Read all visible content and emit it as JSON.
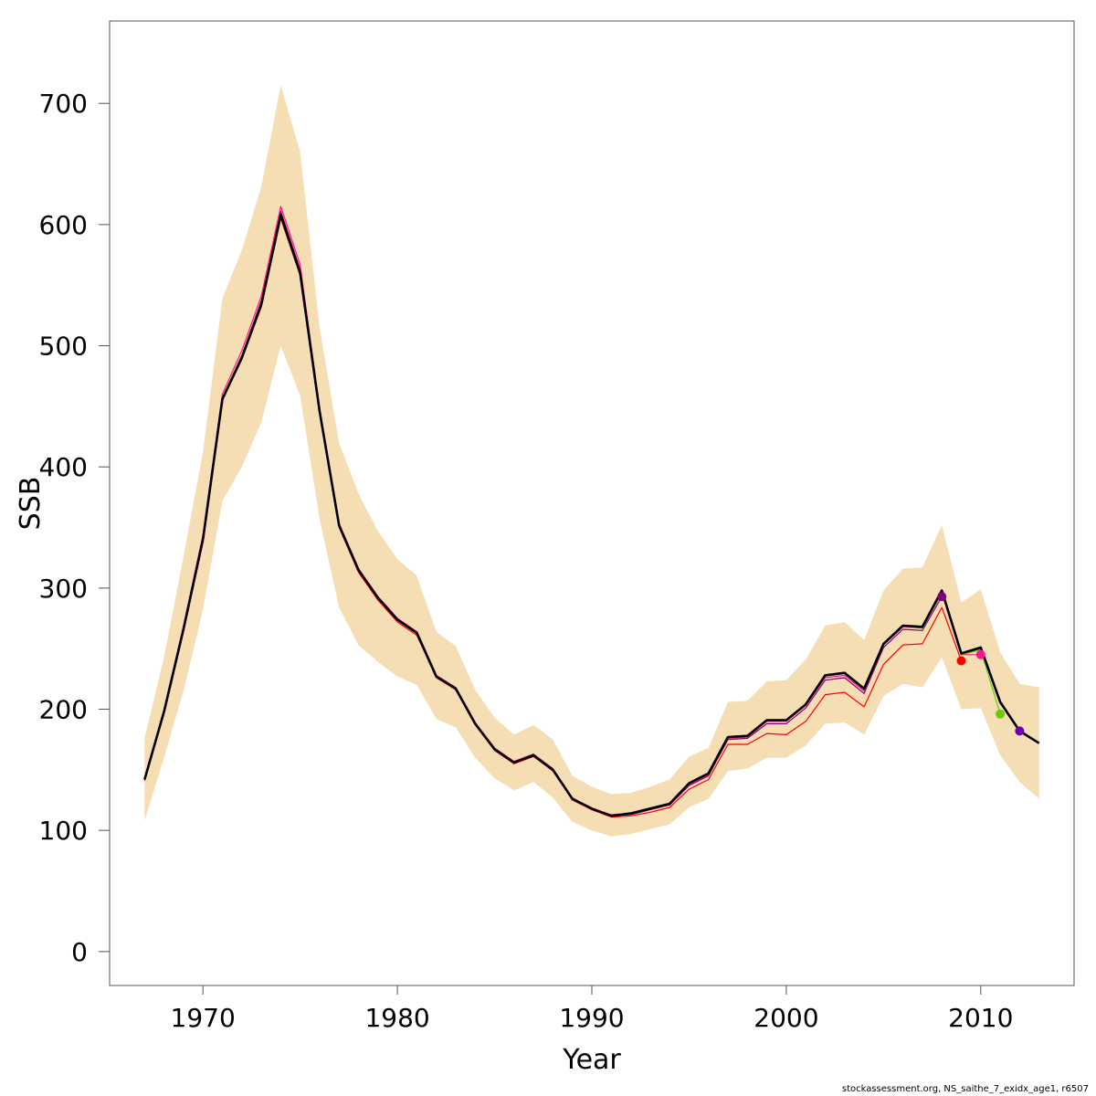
{
  "chart_data": {
    "type": "line",
    "xlabel": "Year",
    "ylabel": "SSB",
    "xlim": [
      1965.2,
      2014.8
    ],
    "ylim": [
      -28,
      768
    ],
    "x_ticks": [
      1970,
      1980,
      1990,
      2000,
      2010
    ],
    "y_ticks": [
      0,
      100,
      200,
      300,
      400,
      500,
      600,
      700
    ],
    "x_tick_labels": [
      "1970",
      "1980",
      "1990",
      "2000",
      "2010"
    ],
    "y_tick_labels": [
      "0",
      "100",
      "200",
      "300",
      "400",
      "500",
      "600",
      "700"
    ],
    "grid": false,
    "legend": "none",
    "band": {
      "color": "#f5deb3",
      "x": [
        1967,
        1968,
        1969,
        1970,
        1971,
        1972,
        1973,
        1974,
        1975,
        1976,
        1977,
        1978,
        1979,
        1980,
        1981,
        1982,
        1983,
        1984,
        1985,
        1986,
        1987,
        1988,
        1989,
        1990,
        1991,
        1992,
        1993,
        1994,
        1995,
        1996,
        1997,
        1998,
        1999,
        2000,
        2001,
        2002,
        2003,
        2004,
        2005,
        2006,
        2007,
        2008,
        2009,
        2010,
        2011,
        2012,
        2013
      ],
      "lower": [
        108,
        160,
        215,
        282,
        372,
        400,
        437,
        500,
        459,
        357,
        284,
        253,
        239,
        227,
        220,
        192,
        185,
        160,
        143,
        133,
        140,
        127,
        107,
        100,
        95,
        97,
        101,
        105,
        119,
        126,
        149,
        151,
        160,
        160,
        170,
        188,
        189,
        179,
        211,
        221,
        218,
        243,
        200,
        201,
        162,
        140,
        126
      ],
      "upper": [
        176,
        243,
        326,
        412,
        539,
        579,
        631,
        715,
        660,
        515,
        420,
        378,
        347,
        324,
        310,
        264,
        252,
        216,
        193,
        179,
        187,
        175,
        145,
        136,
        130,
        131,
        136,
        142,
        161,
        168,
        206,
        207,
        223,
        224,
        241,
        269,
        272,
        257,
        298,
        316,
        317,
        352,
        288,
        299,
        247,
        221,
        218
      ]
    },
    "series": [
      {
        "color": "#000000",
        "width": 2.6,
        "x": [
          1967,
          1968,
          1969,
          1970,
          1971,
          1972,
          1973,
          1974,
          1975,
          1976,
          1977,
          1978,
          1979,
          1980,
          1981,
          1982,
          1983,
          1984,
          1985,
          1986,
          1987,
          1988,
          1989,
          1990,
          1991,
          1992,
          1993,
          1994,
          1995,
          1996,
          1997,
          1998,
          1999,
          2000,
          2001,
          2002,
          2003,
          2004,
          2005,
          2006,
          2007,
          2008,
          2009,
          2010,
          2011,
          2012,
          2013
        ],
        "values": [
          142,
          198,
          266,
          340,
          456,
          490,
          534,
          608,
          560,
          446,
          352,
          315,
          292,
          274,
          263,
          227,
          217,
          188,
          167,
          156,
          162,
          150,
          126,
          118,
          112,
          114,
          118,
          122,
          139,
          147,
          177,
          178,
          191,
          191,
          204,
          228,
          230,
          217,
          254,
          269,
          268,
          298,
          246,
          251,
          206,
          182,
          172
        ]
      },
      {
        "color": "#800080",
        "width": 1.2,
        "x": [
          1967,
          1968,
          1969,
          1970,
          1971,
          1972,
          1973,
          1974,
          1975,
          1976,
          1977,
          1978,
          1979,
          1980,
          1981,
          1982,
          1983,
          1984,
          1985,
          1986,
          1987,
          1988,
          1989,
          1990,
          1991,
          1992,
          1993,
          1994,
          1995,
          1996,
          1997,
          1998,
          1999,
          2000,
          2001,
          2002,
          2003,
          2004,
          2005,
          2006,
          2007,
          2008
        ],
        "values": [
          142,
          199,
          267,
          341,
          457,
          492,
          537,
          611,
          563,
          447,
          352,
          316,
          292,
          274,
          263,
          227,
          217,
          188,
          167,
          156,
          162,
          150,
          126,
          117,
          112,
          113,
          117,
          121,
          137,
          145,
          175,
          176,
          188,
          188,
          201,
          224,
          226,
          213,
          251,
          266,
          265,
          293
        ],
        "end_marker": true
      },
      {
        "color": "#ff1493",
        "width": 1.2,
        "x": [
          1967,
          1968,
          1969,
          1970,
          1971,
          1972,
          1973,
          1974,
          1975,
          1976,
          1977,
          1978,
          1979,
          1980,
          1981,
          1982,
          1983,
          1984,
          1985,
          1986,
          1987,
          1988,
          1989,
          1990,
          1991,
          1992,
          1993,
          1994,
          1995,
          1996,
          1997,
          1998,
          1999,
          2000,
          2001,
          2002,
          2003,
          2004,
          2005,
          2006,
          2007,
          2008,
          2009,
          2010
        ],
        "values": [
          142,
          200,
          269,
          344,
          460,
          496,
          541,
          615,
          567,
          449,
          353,
          316,
          293,
          275,
          264,
          228,
          218,
          189,
          168,
          157,
          163,
          151,
          127,
          118,
          113,
          114,
          118,
          122,
          138,
          146,
          176,
          177,
          190,
          190,
          203,
          226,
          228,
          215,
          253,
          268,
          267,
          296,
          245,
          245
        ],
        "end_marker": true
      },
      {
        "color": "#ff0000",
        "width": 1.2,
        "x": [
          1967,
          1968,
          1969,
          1970,
          1971,
          1972,
          1973,
          1974,
          1975,
          1976,
          1977,
          1978,
          1979,
          1980,
          1981,
          1982,
          1983,
          1984,
          1985,
          1986,
          1987,
          1988,
          1989,
          1990,
          1991,
          1992,
          1993,
          1994,
          1995,
          1996,
          1997,
          1998,
          1999,
          2000,
          2001,
          2002,
          2003,
          2004,
          2005,
          2006,
          2007,
          2008,
          2009
        ],
        "values": [
          141,
          198,
          265,
          339,
          455,
          489,
          532,
          605,
          558,
          444,
          350,
          313,
          290,
          272,
          261,
          226,
          216,
          187,
          166,
          155,
          161,
          149,
          125,
          117,
          111,
          112,
          115,
          119,
          134,
          142,
          171,
          171,
          180,
          179,
          190,
          212,
          214,
          202,
          237,
          253,
          254,
          284,
          240
        ],
        "end_marker": true
      },
      {
        "color": "#66cc00",
        "width": 1.2,
        "x": [
          2007,
          2008,
          2009,
          2010,
          2011
        ],
        "values": [
          266,
          297,
          245,
          249,
          196
        ],
        "end_marker": true
      },
      {
        "color": "#6600aa",
        "width": 1.2,
        "x": [
          2007,
          2008,
          2009,
          2010,
          2011,
          2012
        ],
        "values": [
          267,
          297,
          246,
          250,
          205,
          182
        ],
        "end_marker": true
      }
    ]
  },
  "footer": "stockassessment.org, NS_saithe_7_exidx_age1, r6507"
}
